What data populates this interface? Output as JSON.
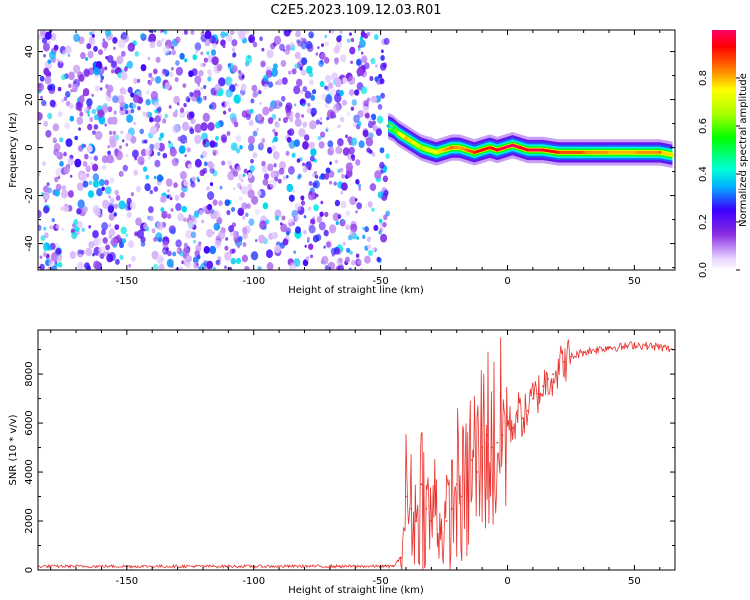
{
  "figure": {
    "title": "C2E5.2023.109.12.03.R01"
  },
  "chart_data": [
    {
      "type": "heatmap",
      "panel": "spectrogram",
      "xlabel": "Height of straight line (km)",
      "ylabel": "Frequency (Hz)",
      "xlim": [
        -185,
        66
      ],
      "ylim": [
        -51,
        49
      ],
      "x_ticks": [
        -150,
        -100,
        -50,
        0,
        50
      ],
      "x_tick_labels": [
        "-150",
        "-100",
        "-50",
        "0",
        "50"
      ],
      "y_ticks": [
        -40,
        -20,
        0,
        20,
        40
      ],
      "y_tick_labels": [
        "-40",
        "-20",
        "0",
        "20",
        "40"
      ],
      "grid": false,
      "noise_region": {
        "x_from": -185,
        "x_to": -47,
        "amplitude_range": [
          0.0,
          0.35
        ]
      },
      "ridge": {
        "x": [
          -47,
          -45,
          -43,
          -40,
          -37,
          -34,
          -31,
          -28,
          -25,
          -22,
          -19,
          -16,
          -13,
          -10,
          -7,
          -4,
          -1,
          2,
          5,
          8,
          11,
          14,
          20,
          30,
          40,
          50,
          60,
          65
        ],
        "freq_hz": [
          9,
          8,
          6,
          4,
          2,
          0,
          -1,
          -2,
          -1,
          0,
          0,
          -1,
          -2,
          -1,
          0,
          -1,
          0,
          1,
          0,
          -1,
          -1,
          -1,
          -2,
          -2,
          -2,
          -2,
          -2,
          -3
        ],
        "amplitude": [
          0.35,
          0.5,
          0.7,
          0.8,
          0.75,
          0.65,
          0.7,
          0.75,
          0.8,
          0.85,
          0.8,
          0.85,
          0.9,
          0.95,
          0.9,
          0.95,
          1.0,
          1.0,
          0.95,
          0.95,
          1.0,
          0.95,
          0.9,
          0.85,
          0.8,
          0.8,
          0.85,
          0.7
        ]
      },
      "colorbar": {
        "label": "Normalized spectral amplitude",
        "range": [
          0.0,
          1.0
        ],
        "ticks": [
          0.0,
          0.2,
          0.4,
          0.6,
          0.8
        ],
        "tick_labels": [
          "0.0",
          "0.2",
          "0.4",
          "0.6",
          "0.8"
        ]
      }
    },
    {
      "type": "line",
      "panel": "snr",
      "xlabel": "Height of straight line (km)",
      "ylabel": "SNR (10 * v/v)",
      "xlim": [
        -185,
        66
      ],
      "ylim": [
        0,
        9800
      ],
      "x_ticks": [
        -150,
        -100,
        -50,
        0,
        50
      ],
      "x_tick_labels": [
        "-150",
        "-100",
        "-50",
        "0",
        "50"
      ],
      "y_ticks": [
        0,
        2000,
        4000,
        6000,
        8000
      ],
      "y_tick_labels": [
        "0",
        "2000",
        "4000",
        "6000",
        "8000"
      ],
      "grid": false,
      "series": [
        {
          "color": "#e8322c",
          "x": [
            -185,
            -150,
            -100,
            -60,
            -45,
            -42,
            -40,
            -38,
            -36,
            -34,
            -32,
            -30,
            -28,
            -26,
            -24,
            -22,
            -20,
            -18,
            -16,
            -14,
            -12,
            -10,
            -8,
            -6,
            -4,
            -2,
            0,
            2,
            4,
            6,
            8,
            10,
            12,
            14,
            16,
            18,
            20,
            22,
            25,
            30,
            35,
            40,
            45,
            50,
            55,
            60,
            65
          ],
          "y": [
            150,
            150,
            150,
            150,
            150,
            500,
            3000,
            2500,
            2000,
            3500,
            2500,
            2000,
            3000,
            1500,
            2000,
            2500,
            3500,
            3000,
            3200,
            4500,
            4000,
            5000,
            5500,
            5000,
            5200,
            5500,
            6000,
            5800,
            6500,
            6200,
            6500,
            7000,
            7200,
            7500,
            7800,
            8000,
            8200,
            8500,
            8700,
            8900,
            9000,
            9100,
            9100,
            9200,
            9150,
            9100,
            9000
          ]
        }
      ]
    }
  ]
}
